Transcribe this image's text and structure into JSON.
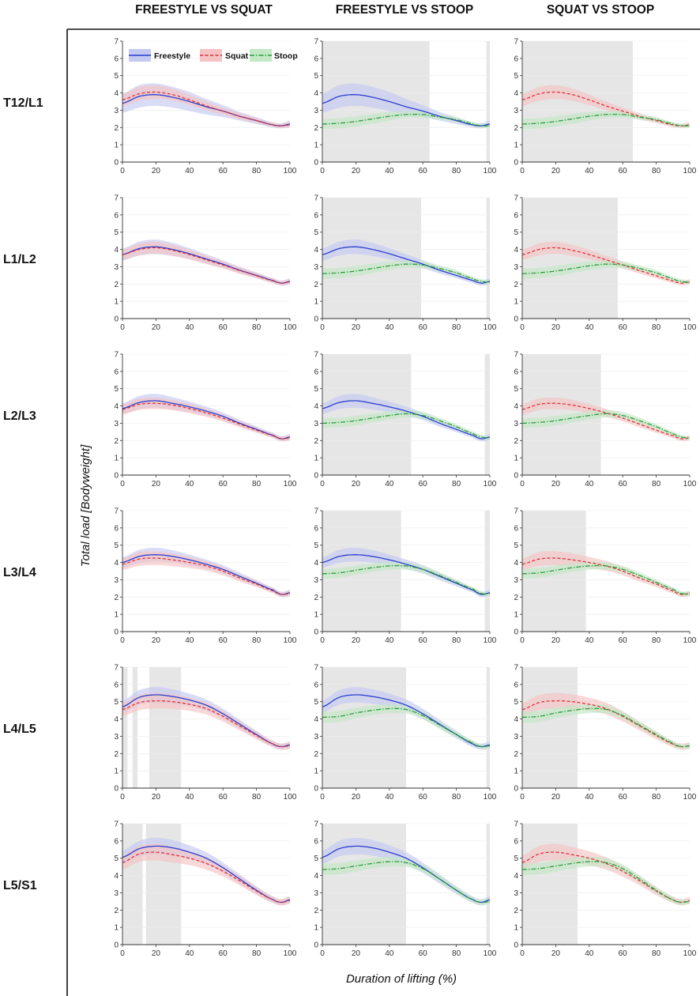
{
  "colors": {
    "freestyle": "#2a3fcc",
    "freestyle_band": "#c4c9f2",
    "squat": "#e0323c",
    "squat_band": "#f5c3c3",
    "stoop": "#2e9e3c",
    "stoop_band": "#c3e8c6",
    "significance": "#e6e6e6",
    "axis": "#333333"
  },
  "chart_data": {
    "type": "line",
    "title": "",
    "xlabel": "Duration of lifting (%)",
    "ylabel": "Total load [Bodyweight]",
    "xlim": [
      0,
      100
    ],
    "ylim": [
      0,
      7
    ],
    "xticks": [
      "0",
      "20",
      "40",
      "60",
      "80",
      "100"
    ],
    "yticks": [
      "0",
      "1",
      "2",
      "3",
      "4",
      "5",
      "6",
      "7"
    ],
    "columns": [
      "FREESTYLE VS SQUAT",
      "FREESTYLE VS STOOP",
      "SQUAT VS STOOP"
    ],
    "column_pairs": [
      [
        "freestyle",
        "squat"
      ],
      [
        "freestyle",
        "stoop"
      ],
      [
        "squat",
        "stoop"
      ]
    ],
    "rows": [
      "T12/L1",
      "L1/L2",
      "L2/L3",
      "L3/L4",
      "L4/L5",
      "L5/S1"
    ],
    "legend": [
      {
        "key": "freestyle",
        "label": "Freestyle",
        "style": "solid"
      },
      {
        "key": "squat",
        "label": "Squat",
        "style": "dashed"
      },
      {
        "key": "stoop",
        "label": "Stoop",
        "style": "dash-dot"
      }
    ],
    "x": [
      0,
      10,
      20,
      30,
      40,
      50,
      60,
      70,
      80,
      90,
      95,
      100
    ],
    "series": {
      "T12/L1": {
        "freestyle": {
          "mean": [
            3.4,
            3.8,
            3.9,
            3.75,
            3.5,
            3.2,
            2.95,
            2.65,
            2.4,
            2.15,
            2.1,
            2.2
          ],
          "sd": [
            0.55,
            0.65,
            0.65,
            0.6,
            0.55,
            0.45,
            0.35,
            0.25,
            0.2,
            0.15,
            0.15,
            0.2
          ]
        },
        "squat": {
          "mean": [
            3.6,
            3.95,
            4.05,
            3.9,
            3.6,
            3.25,
            2.95,
            2.65,
            2.4,
            2.15,
            2.1,
            2.15
          ],
          "sd": [
            0.35,
            0.4,
            0.4,
            0.35,
            0.3,
            0.25,
            0.2,
            0.18,
            0.15,
            0.12,
            0.12,
            0.15
          ]
        },
        "stoop": {
          "mean": [
            2.2,
            2.25,
            2.35,
            2.5,
            2.65,
            2.75,
            2.75,
            2.6,
            2.45,
            2.2,
            2.1,
            2.1
          ],
          "sd": [
            0.3,
            0.3,
            0.3,
            0.28,
            0.25,
            0.2,
            0.18,
            0.16,
            0.14,
            0.12,
            0.12,
            0.12
          ]
        }
      },
      "L1/L2": {
        "freestyle": {
          "mean": [
            3.7,
            4.05,
            4.15,
            4.0,
            3.75,
            3.45,
            3.15,
            2.8,
            2.5,
            2.2,
            2.05,
            2.15
          ],
          "sd": [
            0.35,
            0.4,
            0.42,
            0.38,
            0.32,
            0.27,
            0.22,
            0.2,
            0.17,
            0.15,
            0.15,
            0.18
          ]
        },
        "squat": {
          "mean": [
            3.7,
            4.0,
            4.1,
            3.95,
            3.7,
            3.4,
            3.1,
            2.78,
            2.48,
            2.18,
            2.05,
            2.12
          ],
          "sd": [
            0.3,
            0.35,
            0.35,
            0.32,
            0.28,
            0.24,
            0.2,
            0.18,
            0.15,
            0.13,
            0.13,
            0.15
          ]
        },
        "stoop": {
          "mean": [
            2.6,
            2.65,
            2.75,
            2.9,
            3.05,
            3.15,
            3.1,
            2.9,
            2.65,
            2.3,
            2.15,
            2.1
          ],
          "sd": [
            0.3,
            0.3,
            0.3,
            0.28,
            0.25,
            0.22,
            0.2,
            0.18,
            0.15,
            0.13,
            0.13,
            0.13
          ]
        }
      },
      "L2/L3": {
        "freestyle": {
          "mean": [
            3.85,
            4.2,
            4.3,
            4.15,
            3.95,
            3.7,
            3.4,
            3.0,
            2.65,
            2.3,
            2.1,
            2.2
          ],
          "sd": [
            0.3,
            0.38,
            0.4,
            0.36,
            0.3,
            0.26,
            0.22,
            0.2,
            0.17,
            0.15,
            0.15,
            0.18
          ]
        },
        "squat": {
          "mean": [
            3.8,
            4.1,
            4.15,
            4.05,
            3.85,
            3.6,
            3.3,
            2.95,
            2.6,
            2.28,
            2.1,
            2.15
          ],
          "sd": [
            0.3,
            0.33,
            0.33,
            0.3,
            0.27,
            0.23,
            0.2,
            0.18,
            0.15,
            0.13,
            0.13,
            0.15
          ]
        },
        "stoop": {
          "mean": [
            3.0,
            3.05,
            3.15,
            3.3,
            3.45,
            3.55,
            3.45,
            3.15,
            2.8,
            2.4,
            2.2,
            2.15
          ],
          "sd": [
            0.28,
            0.28,
            0.28,
            0.26,
            0.24,
            0.22,
            0.2,
            0.18,
            0.15,
            0.13,
            0.13,
            0.13
          ]
        }
      },
      "L3/L4": {
        "freestyle": {
          "mean": [
            4.0,
            4.35,
            4.45,
            4.35,
            4.15,
            3.9,
            3.6,
            3.2,
            2.8,
            2.4,
            2.15,
            2.25
          ],
          "sd": [
            0.3,
            0.38,
            0.4,
            0.36,
            0.3,
            0.27,
            0.24,
            0.22,
            0.18,
            0.15,
            0.15,
            0.18
          ]
        },
        "squat": {
          "mean": [
            3.9,
            4.2,
            4.25,
            4.15,
            4.0,
            3.8,
            3.5,
            3.1,
            2.75,
            2.35,
            2.15,
            2.2
          ],
          "sd": [
            0.33,
            0.4,
            0.4,
            0.37,
            0.32,
            0.28,
            0.24,
            0.2,
            0.17,
            0.14,
            0.14,
            0.16
          ]
        },
        "stoop": {
          "mean": [
            3.35,
            3.4,
            3.55,
            3.7,
            3.8,
            3.8,
            3.6,
            3.25,
            2.85,
            2.45,
            2.2,
            2.2
          ],
          "sd": [
            0.28,
            0.28,
            0.27,
            0.25,
            0.23,
            0.22,
            0.2,
            0.18,
            0.15,
            0.13,
            0.13,
            0.13
          ]
        }
      },
      "L4/L5": {
        "freestyle": {
          "mean": [
            4.7,
            5.25,
            5.4,
            5.3,
            5.1,
            4.8,
            4.3,
            3.7,
            3.1,
            2.55,
            2.4,
            2.5
          ],
          "sd": [
            0.35,
            0.42,
            0.45,
            0.42,
            0.37,
            0.33,
            0.3,
            0.26,
            0.22,
            0.18,
            0.18,
            0.2
          ]
        },
        "squat": {
          "mean": [
            4.55,
            4.95,
            5.05,
            5.0,
            4.85,
            4.6,
            4.15,
            3.6,
            3.05,
            2.55,
            2.4,
            2.45
          ],
          "sd": [
            0.38,
            0.44,
            0.45,
            0.42,
            0.38,
            0.34,
            0.3,
            0.26,
            0.22,
            0.18,
            0.18,
            0.2
          ]
        },
        "stoop": {
          "mean": [
            4.1,
            4.15,
            4.35,
            4.5,
            4.6,
            4.55,
            4.2,
            3.65,
            3.1,
            2.6,
            2.4,
            2.45
          ],
          "sd": [
            0.32,
            0.32,
            0.3,
            0.28,
            0.26,
            0.24,
            0.22,
            0.2,
            0.18,
            0.15,
            0.15,
            0.15
          ]
        }
      },
      "L5/S1": {
        "freestyle": {
          "mean": [
            5.05,
            5.55,
            5.7,
            5.6,
            5.35,
            5.0,
            4.45,
            3.8,
            3.15,
            2.6,
            2.45,
            2.6
          ],
          "sd": [
            0.38,
            0.45,
            0.48,
            0.45,
            0.4,
            0.35,
            0.3,
            0.27,
            0.23,
            0.19,
            0.18,
            0.2
          ]
        },
        "squat": {
          "mean": [
            4.75,
            5.25,
            5.35,
            5.2,
            5.0,
            4.7,
            4.25,
            3.7,
            3.1,
            2.6,
            2.45,
            2.55
          ],
          "sd": [
            0.4,
            0.46,
            0.48,
            0.45,
            0.4,
            0.36,
            0.31,
            0.27,
            0.23,
            0.19,
            0.18,
            0.2
          ]
        },
        "stoop": {
          "mean": [
            4.35,
            4.4,
            4.55,
            4.7,
            4.8,
            4.75,
            4.4,
            3.8,
            3.15,
            2.6,
            2.45,
            2.5
          ],
          "sd": [
            0.33,
            0.33,
            0.32,
            0.3,
            0.28,
            0.26,
            0.23,
            0.21,
            0.19,
            0.16,
            0.15,
            0.15
          ]
        }
      }
    },
    "significant_intervals": {
      "T12/L1": [
        [],
        [
          [
            0,
            64
          ],
          [
            98,
            100
          ]
        ],
        [
          [
            0,
            66
          ]
        ]
      ],
      "L1/L2": [
        [],
        [
          [
            0,
            59
          ],
          [
            98,
            100
          ]
        ],
        [
          [
            0,
            57
          ]
        ]
      ],
      "L2/L3": [
        [],
        [
          [
            0,
            53
          ],
          [
            97,
            100
          ]
        ],
        [
          [
            0,
            47
          ]
        ]
      ],
      "L3/L4": [
        [],
        [
          [
            0,
            47
          ],
          [
            97,
            100
          ]
        ],
        [
          [
            0,
            38
          ]
        ]
      ],
      "L4/L5": [
        [
          [
            0,
            3
          ],
          [
            6,
            9
          ],
          [
            16,
            35
          ]
        ],
        [
          [
            0,
            50
          ],
          [
            98,
            100
          ]
        ],
        [
          [
            0,
            33
          ]
        ]
      ],
      "L5/S1": [
        [
          [
            0,
            12
          ],
          [
            14,
            35
          ]
        ],
        [
          [
            0,
            50
          ],
          [
            98,
            100
          ]
        ],
        [
          [
            0,
            33
          ]
        ]
      ]
    }
  }
}
